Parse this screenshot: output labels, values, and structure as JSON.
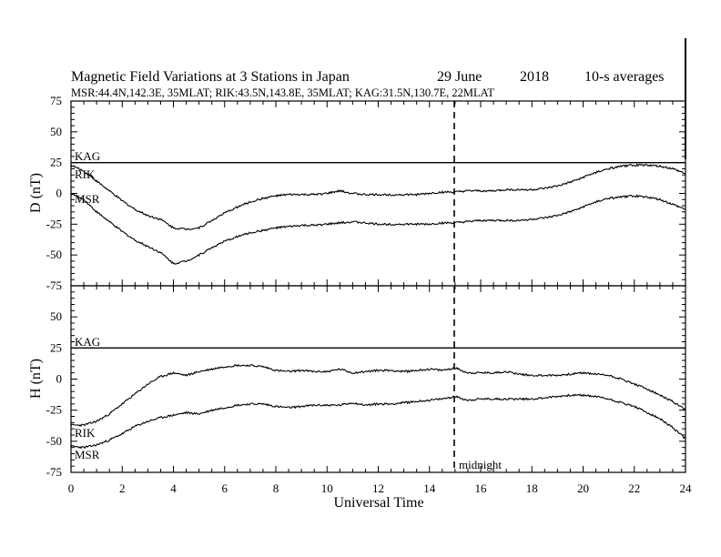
{
  "header": {
    "title": "Magnetic Field Variations at 3 Stations in Japan",
    "date": "29 June",
    "year": "2018",
    "resolution": "10-s averages",
    "stations": "MSR:44.4N,142.3E, 35MLAT;  RIK:43.5N,143.8E, 35MLAT;  KAG:31.5N,130.7E, 22MLAT"
  },
  "xaxis": {
    "label": "Universal Time",
    "ticks": [
      "0",
      "2",
      "4",
      "6",
      "8",
      "10",
      "12",
      "14",
      "16",
      "18",
      "20",
      "22",
      "24"
    ],
    "marker_label": "midnight"
  },
  "chart_data": [
    {
      "type": "line",
      "panel": "D",
      "ylabel": "D (nT)",
      "ylim": [
        -75,
        75
      ],
      "xlim": [
        0,
        24
      ],
      "yticks": [
        "75",
        "50",
        "25",
        "0",
        "-25",
        "-50",
        "-75"
      ],
      "midnight_ut": 15,
      "series": [
        {
          "name": "KAG",
          "x": [
            0,
            24
          ],
          "y": [
            25,
            25
          ]
        },
        {
          "name": "RIK",
          "x": [
            0,
            0.5,
            1,
            1.5,
            2,
            2.5,
            3,
            3.5,
            4,
            4.5,
            5,
            5.5,
            6,
            6.5,
            7,
            7.5,
            8,
            8.5,
            9,
            9.5,
            10,
            10.5,
            11,
            11.5,
            12,
            12.5,
            13,
            13.5,
            14,
            14.5,
            15,
            15.5,
            16,
            16.5,
            17,
            17.5,
            18,
            18.5,
            19,
            19.5,
            20,
            20.5,
            21,
            21.5,
            22,
            22.5,
            23,
            23.5,
            24
          ],
          "y": [
            23,
            18,
            10,
            2,
            -6,
            -13,
            -18,
            -21,
            -28,
            -29,
            -28,
            -22,
            -16,
            -11,
            -7,
            -4,
            -2,
            -1,
            -1,
            -1,
            0,
            2,
            0,
            -1,
            -1,
            -1,
            -1,
            -1,
            0,
            1,
            1,
            2,
            2,
            2,
            3,
            3,
            3,
            4,
            6,
            9,
            13,
            17,
            20,
            22,
            23,
            23,
            22,
            20,
            16
          ]
        },
        {
          "name": "MSR",
          "x": [
            0,
            0.5,
            1,
            1.5,
            2,
            2.5,
            3,
            3.5,
            4,
            4.5,
            5,
            5.5,
            6,
            6.5,
            7,
            7.5,
            8,
            8.5,
            9,
            9.5,
            10,
            10.5,
            11,
            11.5,
            12,
            12.5,
            13,
            13.5,
            14,
            14.5,
            15,
            15.5,
            16,
            16.5,
            17,
            17.5,
            18,
            18.5,
            19,
            19.5,
            20,
            20.5,
            21,
            21.5,
            22,
            22.5,
            23,
            23.5,
            24
          ],
          "y": [
            0,
            -5,
            -15,
            -23,
            -31,
            -38,
            -43,
            -48,
            -57,
            -55,
            -50,
            -44,
            -39,
            -35,
            -32,
            -30,
            -28,
            -27,
            -26,
            -26,
            -25,
            -24,
            -23,
            -24,
            -25,
            -25,
            -25,
            -25,
            -25,
            -24,
            -24,
            -23,
            -22,
            -22,
            -22,
            -22,
            -21,
            -20,
            -18,
            -15,
            -11,
            -7,
            -4,
            -3,
            -2,
            -3,
            -5,
            -9,
            -13
          ]
        }
      ]
    },
    {
      "type": "line",
      "panel": "H",
      "ylabel": "H (nT)",
      "ylim": [
        -75,
        75
      ],
      "xlim": [
        0,
        24
      ],
      "yticks": [
        "75",
        "50",
        "25",
        "0",
        "-25",
        "-50",
        "-75"
      ],
      "midnight_ut": 15,
      "series": [
        {
          "name": "KAG",
          "x": [
            0,
            24
          ],
          "y": [
            25,
            25
          ]
        },
        {
          "name": "RIK",
          "x": [
            0,
            0.5,
            1,
            1.5,
            2,
            2.5,
            3,
            3.5,
            4,
            4.5,
            5,
            5.5,
            6,
            6.5,
            7,
            7.5,
            8,
            8.5,
            9,
            9.5,
            10,
            10.5,
            11,
            11.5,
            12,
            12.5,
            13,
            13.5,
            14,
            14.5,
            15,
            15.5,
            16,
            16.5,
            17,
            17.5,
            18,
            18.5,
            19,
            19.5,
            20,
            20.5,
            21,
            21.5,
            22,
            22.5,
            23,
            23.5,
            24
          ],
          "y": [
            -37,
            -37,
            -34,
            -28,
            -20,
            -12,
            -4,
            2,
            5,
            3,
            6,
            8,
            10,
            11,
            11,
            10,
            7,
            6,
            7,
            6,
            6,
            8,
            5,
            6,
            7,
            7,
            6,
            7,
            8,
            7,
            9,
            5,
            5,
            5,
            6,
            4,
            3,
            3,
            3,
            4,
            5,
            4,
            3,
            0,
            -4,
            -8,
            -13,
            -18,
            -25
          ]
        },
        {
          "name": "MSR",
          "x": [
            0,
            0.5,
            1,
            1.5,
            2,
            2.5,
            3,
            3.5,
            4,
            4.5,
            5,
            5.5,
            6,
            6.5,
            7,
            7.5,
            8,
            8.5,
            9,
            9.5,
            10,
            10.5,
            11,
            11.5,
            12,
            12.5,
            13,
            13.5,
            14,
            14.5,
            15,
            15.5,
            16,
            16.5,
            17,
            17.5,
            18,
            18.5,
            19,
            19.5,
            20,
            20.5,
            21,
            21.5,
            22,
            22.5,
            23,
            23.5,
            24
          ],
          "y": [
            -54,
            -55,
            -53,
            -49,
            -44,
            -38,
            -34,
            -31,
            -29,
            -27,
            -28,
            -25,
            -23,
            -21,
            -20,
            -20,
            -22,
            -23,
            -22,
            -21,
            -21,
            -21,
            -19,
            -21,
            -20,
            -20,
            -19,
            -18,
            -17,
            -16,
            -14,
            -17,
            -16,
            -16,
            -16,
            -16,
            -16,
            -15,
            -14,
            -13,
            -13,
            -14,
            -16,
            -19,
            -22,
            -27,
            -32,
            -39,
            -48
          ]
        }
      ]
    }
  ]
}
